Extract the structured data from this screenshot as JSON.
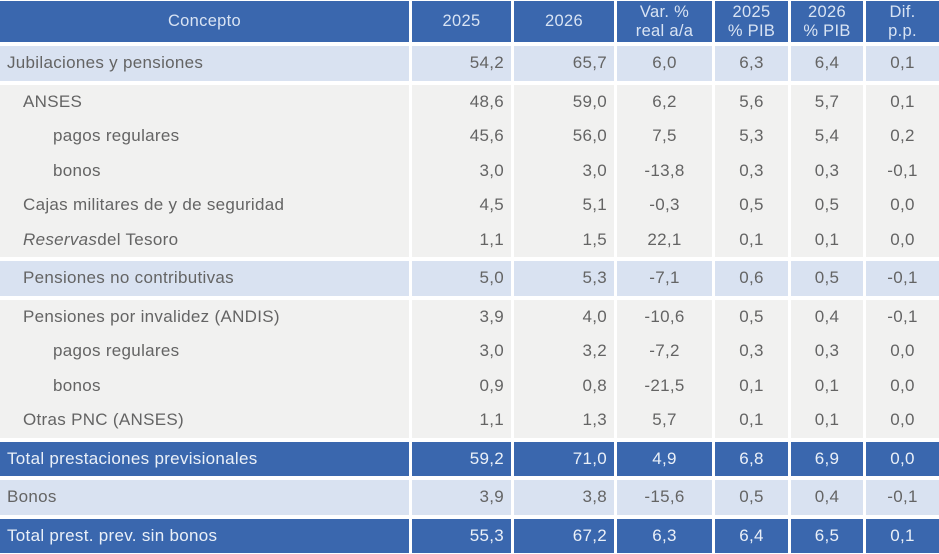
{
  "colors": {
    "header_bg": "#3A67AE",
    "header_text": "#D8E3F3",
    "section_bg": "#D9E2F1",
    "item_bg": "#F1F1F0",
    "total_bg": "#3A67AE",
    "total_text": "#EAF0F8",
    "body_text": "#646464"
  },
  "table": {
    "columns": [
      {
        "id": "concepto",
        "line1": "Concepto",
        "line2": ""
      },
      {
        "id": "y2025",
        "line1": "2025",
        "line2": ""
      },
      {
        "id": "y2026",
        "line1": "2026",
        "line2": ""
      },
      {
        "id": "var_real",
        "line1": "Var. %",
        "line2": "real a/a"
      },
      {
        "id": "pib2025",
        "line1": "2025",
        "line2": "% PIB"
      },
      {
        "id": "pib2026",
        "line1": "2026",
        "line2": "% PIB"
      },
      {
        "id": "dif_pp",
        "line1": "Dif.",
        "line2": "p.p."
      }
    ],
    "rows": [
      {
        "label": "Jubilaciones y pensiones",
        "label_italic": "",
        "indent": 0,
        "style": "section",
        "gap_above": true,
        "values": [
          "54,2",
          "65,7",
          "6,0",
          "6,3",
          "6,4",
          "0,1"
        ]
      },
      {
        "label": "ANSES",
        "label_italic": "",
        "indent": 1,
        "style": "item",
        "gap_above": true,
        "values": [
          "48,6",
          "59,0",
          "6,2",
          "5,6",
          "5,7",
          "0,1"
        ]
      },
      {
        "label": "pagos regulares",
        "label_italic": "",
        "indent": 2,
        "style": "item",
        "gap_above": false,
        "values": [
          "45,6",
          "56,0",
          "7,5",
          "5,3",
          "5,4",
          "0,2"
        ]
      },
      {
        "label": "bonos",
        "label_italic": "",
        "indent": 2,
        "style": "item",
        "gap_above": false,
        "values": [
          "3,0",
          "3,0",
          "-13,8",
          "0,3",
          "0,3",
          "-0,1"
        ]
      },
      {
        "label": "Cajas militares de y de seguridad",
        "label_italic": "",
        "indent": 1,
        "style": "item",
        "gap_above": false,
        "values": [
          "4,5",
          "5,1",
          "-0,3",
          "0,5",
          "0,5",
          "0,0"
        ]
      },
      {
        "label": " del Tesoro",
        "label_italic": "Reservas",
        "indent": 1,
        "style": "item",
        "gap_above": false,
        "values": [
          "1,1",
          "1,5",
          "22,1",
          "0,1",
          "0,1",
          "0,0"
        ]
      },
      {
        "label": "Pensiones no contributivas",
        "label_italic": "",
        "indent": 1,
        "style": "section",
        "gap_above": true,
        "values": [
          "5,0",
          "5,3",
          "-7,1",
          "0,6",
          "0,5",
          "-0,1"
        ]
      },
      {
        "label": "Pensiones por invalidez (ANDIS)",
        "label_italic": "",
        "indent": 1,
        "style": "item",
        "gap_above": true,
        "values": [
          "3,9",
          "4,0",
          "-10,6",
          "0,5",
          "0,4",
          "-0,1"
        ]
      },
      {
        "label": "pagos regulares",
        "label_italic": "",
        "indent": 2,
        "style": "item",
        "gap_above": false,
        "values": [
          "3,0",
          "3,2",
          "-7,2",
          "0,3",
          "0,3",
          "0,0"
        ]
      },
      {
        "label": "bonos",
        "label_italic": "",
        "indent": 2,
        "style": "item",
        "gap_above": false,
        "values": [
          "0,9",
          "0,8",
          "-21,5",
          "0,1",
          "0,1",
          "0,0"
        ]
      },
      {
        "label": "Otras PNC (ANSES)",
        "label_italic": "",
        "indent": 1,
        "style": "item",
        "gap_above": false,
        "values": [
          "1,1",
          "1,3",
          "5,7",
          "0,1",
          "0,1",
          "0,0"
        ]
      },
      {
        "label": "Total prestaciones previsionales",
        "label_italic": "",
        "indent": 0,
        "style": "total",
        "gap_above": true,
        "values": [
          "59,2",
          "71,0",
          "4,9",
          "6,8",
          "6,9",
          "0,0"
        ]
      },
      {
        "label": "Bonos",
        "label_italic": "",
        "indent": 0,
        "style": "section",
        "gap_above": true,
        "values": [
          "3,9",
          "3,8",
          "-15,6",
          "0,5",
          "0,4",
          "-0,1"
        ]
      },
      {
        "label": "Total prest. prev. sin bonos",
        "label_italic": "",
        "indent": 0,
        "style": "total",
        "gap_above": true,
        "values": [
          "55,3",
          "67,2",
          "6,3",
          "6,4",
          "6,5",
          "0,1"
        ]
      }
    ]
  }
}
